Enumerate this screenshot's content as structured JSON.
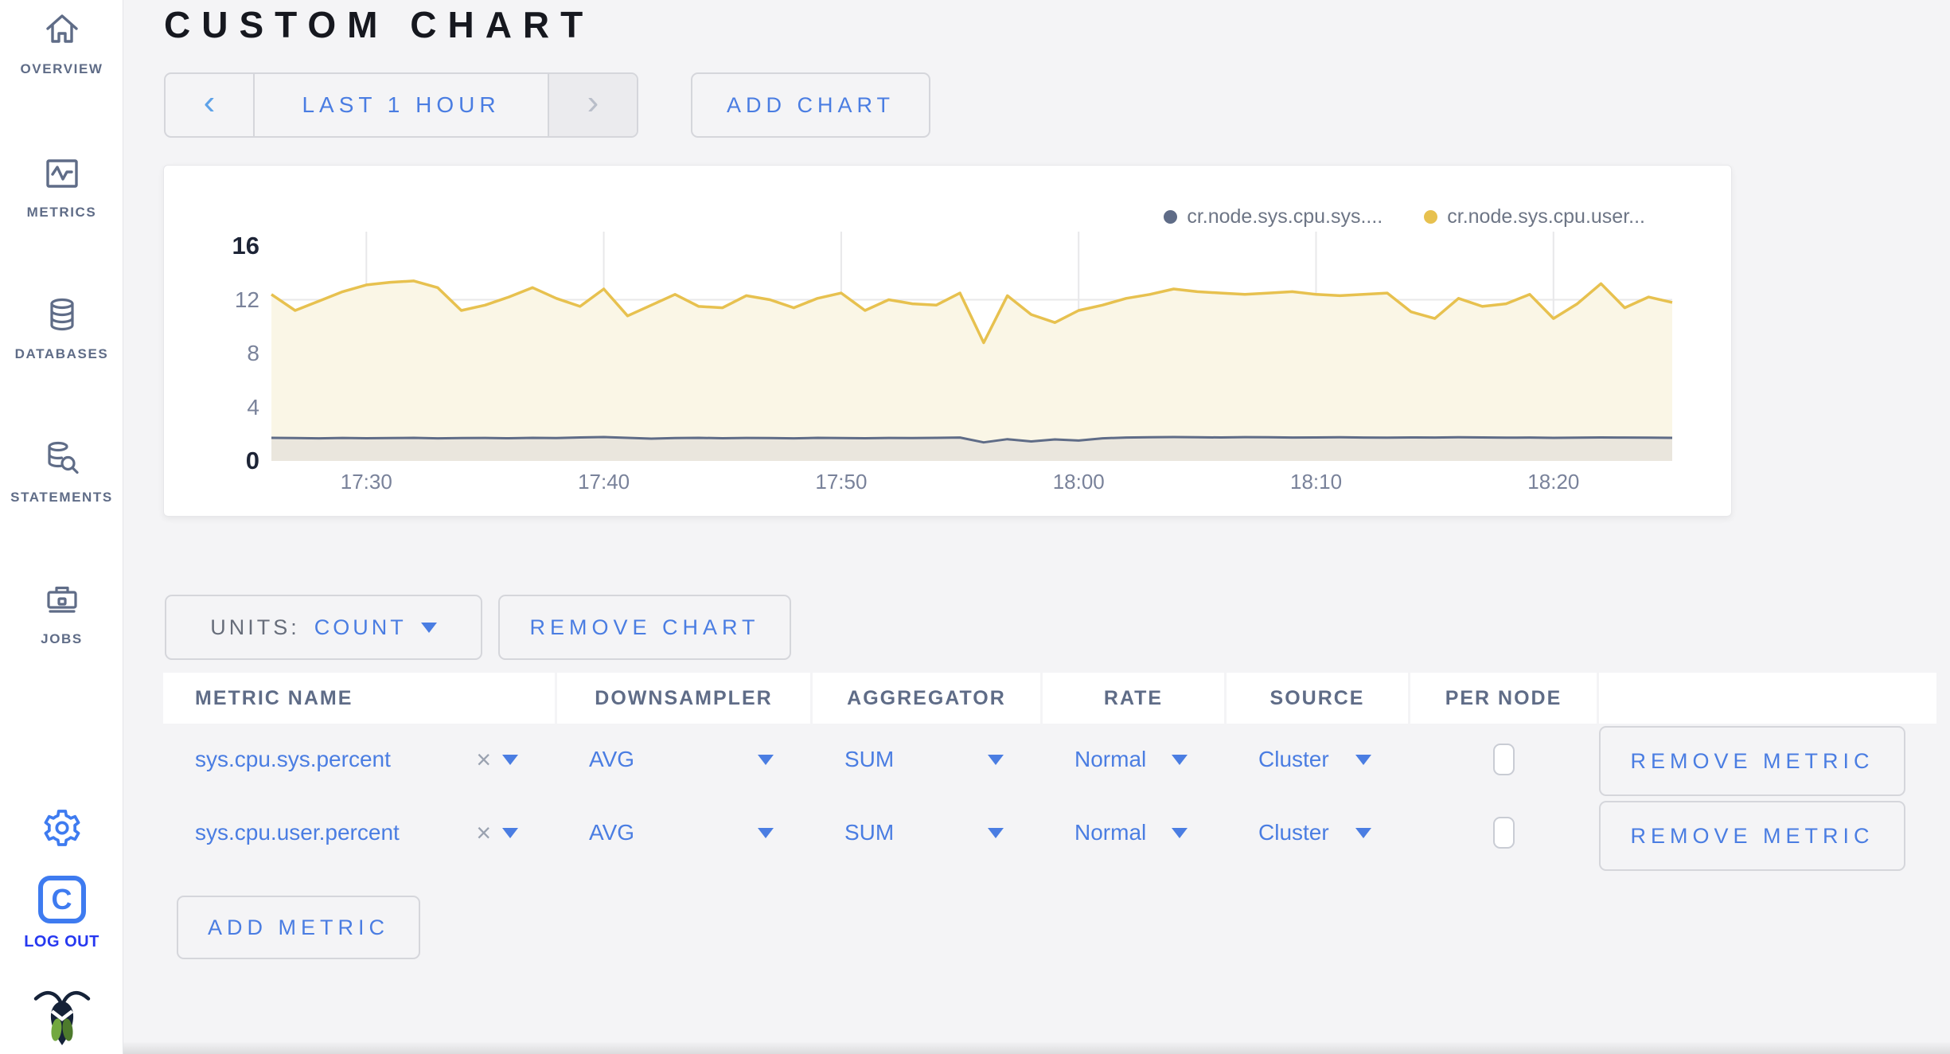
{
  "header": {
    "title": "CUSTOM CHART"
  },
  "toolbar": {
    "time_prev_icon": "‹",
    "time_range_label": "LAST 1 HOUR",
    "time_next_icon": "›",
    "add_chart_label": "ADD CHART"
  },
  "sidebar": {
    "items": [
      {
        "label": "OVERVIEW",
        "icon": "home-icon"
      },
      {
        "label": "METRICS",
        "icon": "metrics-icon"
      },
      {
        "label": "DATABASES",
        "icon": "databases-icon"
      },
      {
        "label": "STATEMENTS",
        "icon": "statements-icon"
      },
      {
        "label": "JOBS",
        "icon": "jobs-icon"
      }
    ],
    "logout_label": "LOG OUT"
  },
  "colors": {
    "accent_blue": "#4a7de2",
    "icon_blue": "#3e7bf0",
    "logout_blue": "#2638f0",
    "sidebar_slate": "#5f6c87",
    "series_sys": "#5f6c87",
    "series_user": "#e7c14f",
    "page_background": "#f4f4f6"
  },
  "chart_controls": {
    "units_label": "UNITS:",
    "units_value": "COUNT",
    "remove_chart_label": "REMOVE CHART",
    "add_metric_label": "ADD METRIC"
  },
  "metrics_table": {
    "columns": [
      "METRIC NAME",
      "DOWNSAMPLER",
      "AGGREGATOR",
      "RATE",
      "SOURCE",
      "PER NODE",
      ""
    ],
    "rows": [
      {
        "metric_name": "sys.cpu.sys.percent",
        "remove_glyph": "×",
        "downsampler": "AVG",
        "aggregator": "SUM",
        "rate": "Normal",
        "source": "Cluster",
        "per_node_checked": false,
        "remove_label": "REMOVE METRIC"
      },
      {
        "metric_name": "sys.cpu.user.percent",
        "remove_glyph": "×",
        "downsampler": "AVG",
        "aggregator": "SUM",
        "rate": "Normal",
        "source": "Cluster",
        "per_node_checked": false,
        "remove_label": "REMOVE METRIC"
      }
    ]
  },
  "chart_data": {
    "type": "area",
    "title": "",
    "ylim": [
      0,
      16
    ],
    "yticks": [
      16,
      12,
      8,
      4,
      0
    ],
    "grid_yticks": [
      4,
      8,
      12
    ],
    "x_total_minutes": 59,
    "x_start_label": "17:26",
    "x_end_label": "18:25",
    "x_ticks": [
      {
        "label": "17:30",
        "minute": 4
      },
      {
        "label": "17:40",
        "minute": 14
      },
      {
        "label": "17:50",
        "minute": 24
      },
      {
        "label": "18:00",
        "minute": 34
      },
      {
        "label": "18:10",
        "minute": 44
      },
      {
        "label": "18:20",
        "minute": 54
      }
    ],
    "legend_position": "top-right",
    "series": [
      {
        "name": "cr.node.sys.cpu.sys....",
        "color": "#5f6c87",
        "fill": "#eae6dd",
        "values": [
          1.72,
          1.7,
          1.68,
          1.71,
          1.69,
          1.7,
          1.72,
          1.68,
          1.7,
          1.71,
          1.69,
          1.72,
          1.7,
          1.75,
          1.78,
          1.72,
          1.66,
          1.7,
          1.72,
          1.69,
          1.71,
          1.7,
          1.68,
          1.72,
          1.7,
          1.69,
          1.71,
          1.7,
          1.72,
          1.74,
          1.38,
          1.62,
          1.45,
          1.6,
          1.52,
          1.68,
          1.74,
          1.76,
          1.78,
          1.76,
          1.75,
          1.77,
          1.76,
          1.74,
          1.75,
          1.76,
          1.74,
          1.73,
          1.75,
          1.74,
          1.76,
          1.75,
          1.73,
          1.74,
          1.72,
          1.73,
          1.75,
          1.74,
          1.73,
          1.72
        ]
      },
      {
        "name": "cr.node.sys.cpu.user...",
        "color": "#e7c14f",
        "fill": "#faf6e6",
        "values": [
          12.4,
          11.2,
          11.9,
          12.6,
          13.1,
          13.3,
          13.4,
          12.9,
          11.2,
          11.6,
          12.2,
          12.9,
          12.1,
          11.5,
          12.8,
          10.8,
          11.6,
          12.4,
          11.5,
          11.4,
          12.3,
          12.0,
          11.4,
          12.1,
          12.5,
          11.2,
          12.0,
          11.7,
          11.6,
          12.5,
          8.8,
          12.3,
          10.9,
          10.3,
          11.2,
          11.6,
          12.1,
          12.4,
          12.8,
          12.6,
          12.5,
          12.4,
          12.5,
          12.6,
          12.4,
          12.3,
          12.4,
          12.5,
          11.1,
          10.6,
          12.1,
          11.5,
          11.7,
          12.4,
          10.6,
          11.7,
          13.2,
          11.4,
          12.2,
          11.8
        ]
      }
    ]
  }
}
